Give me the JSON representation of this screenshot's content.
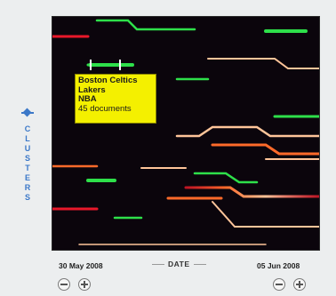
{
  "side": {
    "label": "CLUSTERS",
    "icon": "diamond-icon",
    "color": "#3b78c8"
  },
  "tooltip": {
    "lines": [
      "Boston Celtics",
      "Lakers",
      "NBA"
    ],
    "count_label": "45 documents",
    "background": "#f4f000"
  },
  "dates": {
    "start": "30 May 2008",
    "end": "05 Jun 2008",
    "axis_label": "DATE"
  },
  "controls": {
    "zoom_buttons": [
      "zoom-out-icon",
      "zoom-in-icon",
      "zoom-out-icon",
      "zoom-in-icon"
    ]
  },
  "colors": {
    "background": "#0b050c",
    "red": "#e8182a",
    "orange": "#ff6a2a",
    "peach": "#ffc59a",
    "green": "#2ee04a",
    "purple": "#7b1a8e",
    "pink": "#d13a7a"
  }
}
